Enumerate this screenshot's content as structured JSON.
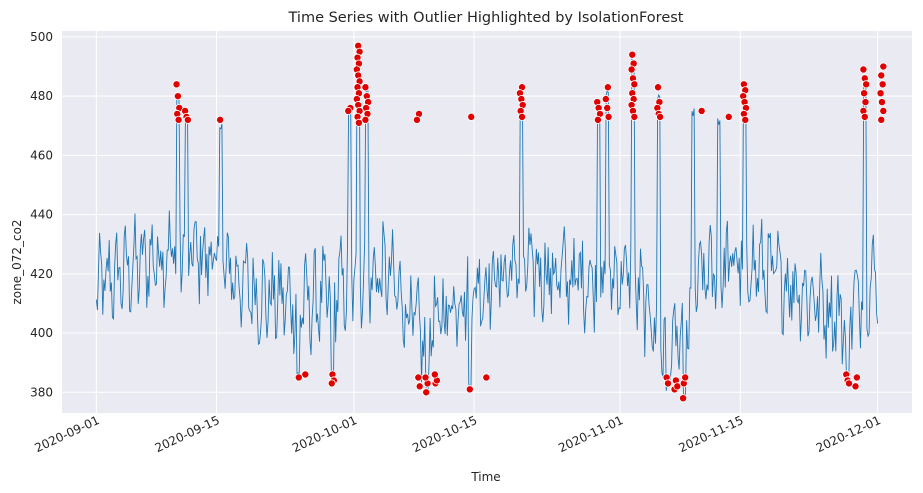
{
  "chart_data": {
    "type": "line",
    "title": "Time Series with Outlier Highlighted by IsolationForest",
    "xlabel": "Time",
    "ylabel": "zone_072_co2",
    "xlim": [
      "2020-08-28",
      "2020-12-05"
    ],
    "ylim": [
      373,
      502
    ],
    "x_ticks": [
      "2020-09-01",
      "2020-09-15",
      "2020-10-01",
      "2020-10-15",
      "2020-11-01",
      "2020-11-15",
      "2020-12-01"
    ],
    "y_ticks": [
      380,
      400,
      420,
      440,
      460,
      480,
      500
    ],
    "grid": true,
    "legend": "none",
    "background": "#eaeaf2",
    "series": [
      {
        "kind": "line",
        "color": "#1f77b4",
        "sample_interval_hours": 3,
        "x_start": "2020-09-01",
        "x_end": "2020-12-01",
        "band_centers": [
          {
            "x": "2020-09-01",
            "y": 415
          },
          {
            "x": "2020-09-05",
            "y": 422
          },
          {
            "x": "2020-09-10",
            "y": 428
          },
          {
            "x": "2020-09-15",
            "y": 425
          },
          {
            "x": "2020-09-20",
            "y": 412
          },
          {
            "x": "2020-09-26",
            "y": 410
          },
          {
            "x": "2020-10-01",
            "y": 418
          },
          {
            "x": "2020-10-05",
            "y": 420
          },
          {
            "x": "2020-10-09",
            "y": 398
          },
          {
            "x": "2020-10-13",
            "y": 412
          },
          {
            "x": "2020-10-20",
            "y": 422
          },
          {
            "x": "2020-10-28",
            "y": 418
          },
          {
            "x": "2020-11-02",
            "y": 420
          },
          {
            "x": "2020-11-06",
            "y": 398
          },
          {
            "x": "2020-11-08",
            "y": 395
          },
          {
            "x": "2020-11-10",
            "y": 418
          },
          {
            "x": "2020-11-15",
            "y": 425
          },
          {
            "x": "2020-11-22",
            "y": 415
          },
          {
            "x": "2020-11-27",
            "y": 405
          },
          {
            "x": "2020-12-01",
            "y": 420
          }
        ],
        "band_half_width": 14,
        "spikes": [
          {
            "x": "2020-09-10",
            "y": 480
          },
          {
            "x": "2020-09-11",
            "y": 472
          },
          {
            "x": "2020-09-15",
            "y": 470
          },
          {
            "x": "2020-09-30",
            "y": 475
          },
          {
            "x": "2020-10-01",
            "y": 495
          },
          {
            "x": "2020-10-02",
            "y": 482
          },
          {
            "x": "2020-10-20",
            "y": 480
          },
          {
            "x": "2020-10-29",
            "y": 478
          },
          {
            "x": "2020-10-30",
            "y": 482
          },
          {
            "x": "2020-11-02",
            "y": 492
          },
          {
            "x": "2020-11-05",
            "y": 480
          },
          {
            "x": "2020-11-09",
            "y": 474
          },
          {
            "x": "2020-11-12",
            "y": 472
          },
          {
            "x": "2020-11-15",
            "y": 482
          },
          {
            "x": "2020-11-29",
            "y": 485
          },
          {
            "x": "2020-12-01",
            "y": 488
          }
        ],
        "dips": [
          {
            "x": "2020-09-24",
            "y": 386
          },
          {
            "x": "2020-09-28",
            "y": 384
          },
          {
            "x": "2020-10-09",
            "y": 381
          },
          {
            "x": "2020-10-14",
            "y": 382
          },
          {
            "x": "2020-11-06",
            "y": 382
          },
          {
            "x": "2020-11-08",
            "y": 378
          },
          {
            "x": "2020-11-27",
            "y": 384
          }
        ]
      },
      {
        "kind": "scatter",
        "color": "#e00000",
        "edgecolor": "#ffffff",
        "points": [
          {
            "x": "2020-09-10",
            "y": 484
          },
          {
            "x": "2020-09-10",
            "y": 480
          },
          {
            "x": "2020-09-10",
            "y": 476
          },
          {
            "x": "2020-09-10",
            "y": 474
          },
          {
            "x": "2020-09-10",
            "y": 472
          },
          {
            "x": "2020-09-11",
            "y": 475
          },
          {
            "x": "2020-09-11",
            "y": 473
          },
          {
            "x": "2020-09-11",
            "y": 472
          },
          {
            "x": "2020-09-15",
            "y": 472
          },
          {
            "x": "2020-09-24",
            "y": 385
          },
          {
            "x": "2020-09-25",
            "y": 386
          },
          {
            "x": "2020-09-28",
            "y": 386
          },
          {
            "x": "2020-09-28",
            "y": 384
          },
          {
            "x": "2020-09-28",
            "y": 383
          },
          {
            "x": "2020-09-30",
            "y": 476
          },
          {
            "x": "2020-09-30",
            "y": 475
          },
          {
            "x": "2020-10-01",
            "y": 497
          },
          {
            "x": "2020-10-01",
            "y": 495
          },
          {
            "x": "2020-10-01",
            "y": 493
          },
          {
            "x": "2020-10-01",
            "y": 491
          },
          {
            "x": "2020-10-01",
            "y": 489
          },
          {
            "x": "2020-10-01",
            "y": 487
          },
          {
            "x": "2020-10-01",
            "y": 485
          },
          {
            "x": "2020-10-01",
            "y": 483
          },
          {
            "x": "2020-10-01",
            "y": 481
          },
          {
            "x": "2020-10-01",
            "y": 479
          },
          {
            "x": "2020-10-01",
            "y": 477
          },
          {
            "x": "2020-10-01",
            "y": 475
          },
          {
            "x": "2020-10-01",
            "y": 473
          },
          {
            "x": "2020-10-01",
            "y": 471
          },
          {
            "x": "2020-10-02",
            "y": 483
          },
          {
            "x": "2020-10-02",
            "y": 480
          },
          {
            "x": "2020-10-02",
            "y": 478
          },
          {
            "x": "2020-10-02",
            "y": 476
          },
          {
            "x": "2020-10-02",
            "y": 474
          },
          {
            "x": "2020-10-02",
            "y": 472
          },
          {
            "x": "2020-10-08",
            "y": 385
          },
          {
            "x": "2020-10-08",
            "y": 382
          },
          {
            "x": "2020-10-09",
            "y": 380
          },
          {
            "x": "2020-10-09",
            "y": 383
          },
          {
            "x": "2020-10-09",
            "y": 385
          },
          {
            "x": "2020-10-10",
            "y": 383
          },
          {
            "x": "2020-10-10",
            "y": 384
          },
          {
            "x": "2020-10-10",
            "y": 386
          },
          {
            "x": "2020-10-08",
            "y": 474
          },
          {
            "x": "2020-10-08",
            "y": 472
          },
          {
            "x": "2020-10-14",
            "y": 381
          },
          {
            "x": "2020-10-14",
            "y": 473
          },
          {
            "x": "2020-10-16",
            "y": 385
          },
          {
            "x": "2020-10-20",
            "y": 483
          },
          {
            "x": "2020-10-20",
            "y": 481
          },
          {
            "x": "2020-10-20",
            "y": 479
          },
          {
            "x": "2020-10-20",
            "y": 477
          },
          {
            "x": "2020-10-20",
            "y": 475
          },
          {
            "x": "2020-10-20",
            "y": 473
          },
          {
            "x": "2020-10-29",
            "y": 478
          },
          {
            "x": "2020-10-29",
            "y": 476
          },
          {
            "x": "2020-10-29",
            "y": 474
          },
          {
            "x": "2020-10-29",
            "y": 472
          },
          {
            "x": "2020-10-30",
            "y": 483
          },
          {
            "x": "2020-10-30",
            "y": 479
          },
          {
            "x": "2020-10-30",
            "y": 476
          },
          {
            "x": "2020-10-30",
            "y": 473
          },
          {
            "x": "2020-11-02",
            "y": 494
          },
          {
            "x": "2020-11-02",
            "y": 491
          },
          {
            "x": "2020-11-02",
            "y": 489
          },
          {
            "x": "2020-11-02",
            "y": 486
          },
          {
            "x": "2020-11-02",
            "y": 484
          },
          {
            "x": "2020-11-02",
            "y": 481
          },
          {
            "x": "2020-11-02",
            "y": 479
          },
          {
            "x": "2020-11-02",
            "y": 477
          },
          {
            "x": "2020-11-02",
            "y": 475
          },
          {
            "x": "2020-11-02",
            "y": 473
          },
          {
            "x": "2020-11-05",
            "y": 483
          },
          {
            "x": "2020-11-05",
            "y": 478
          },
          {
            "x": "2020-11-05",
            "y": 476
          },
          {
            "x": "2020-11-05",
            "y": 474
          },
          {
            "x": "2020-11-05",
            "y": 473
          },
          {
            "x": "2020-11-06",
            "y": 385
          },
          {
            "x": "2020-11-06",
            "y": 383
          },
          {
            "x": "2020-11-07",
            "y": 381
          },
          {
            "x": "2020-11-07",
            "y": 384
          },
          {
            "x": "2020-11-07",
            "y": 382
          },
          {
            "x": "2020-11-08",
            "y": 383
          },
          {
            "x": "2020-11-08",
            "y": 385
          },
          {
            "x": "2020-11-08",
            "y": 378
          },
          {
            "x": "2020-11-10",
            "y": 475
          },
          {
            "x": "2020-11-13",
            "y": 473
          },
          {
            "x": "2020-11-15",
            "y": 484
          },
          {
            "x": "2020-11-15",
            "y": 482
          },
          {
            "x": "2020-11-15",
            "y": 480
          },
          {
            "x": "2020-11-15",
            "y": 478
          },
          {
            "x": "2020-11-15",
            "y": 476
          },
          {
            "x": "2020-11-15",
            "y": 474
          },
          {
            "x": "2020-11-15",
            "y": 472
          },
          {
            "x": "2020-11-27",
            "y": 386
          },
          {
            "x": "2020-11-27",
            "y": 384
          },
          {
            "x": "2020-11-27",
            "y": 383
          },
          {
            "x": "2020-11-28",
            "y": 382
          },
          {
            "x": "2020-11-28",
            "y": 385
          },
          {
            "x": "2020-11-29",
            "y": 489
          },
          {
            "x": "2020-11-29",
            "y": 486
          },
          {
            "x": "2020-11-29",
            "y": 484
          },
          {
            "x": "2020-11-29",
            "y": 481
          },
          {
            "x": "2020-11-29",
            "y": 478
          },
          {
            "x": "2020-11-29",
            "y": 475
          },
          {
            "x": "2020-11-29",
            "y": 473
          },
          {
            "x": "2020-12-01",
            "y": 490
          },
          {
            "x": "2020-12-01",
            "y": 487
          },
          {
            "x": "2020-12-01",
            "y": 484
          },
          {
            "x": "2020-12-01",
            "y": 481
          },
          {
            "x": "2020-12-01",
            "y": 478
          },
          {
            "x": "2020-12-01",
            "y": 475
          },
          {
            "x": "2020-12-01",
            "y": 472
          }
        ]
      }
    ]
  }
}
